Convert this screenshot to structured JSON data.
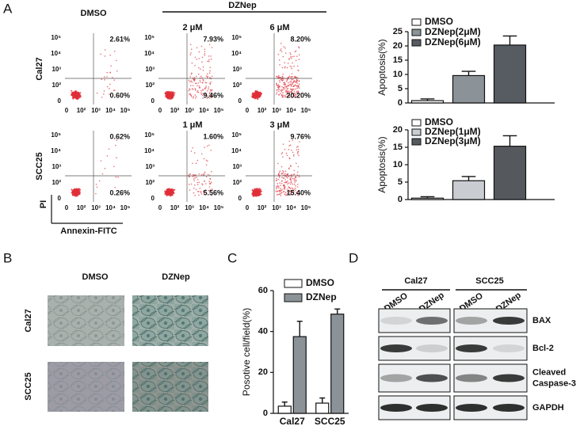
{
  "panel_labels": [
    "A",
    "B",
    "C",
    "D"
  ],
  "flow": {
    "header_dmso": "DMSO",
    "header_dznep": "DZNep",
    "axis_ticks": [
      "0",
      "10²",
      "10³",
      "10⁴",
      "10⁵"
    ],
    "y_label": "PI",
    "x_label": "Annexin-FITC",
    "rows": [
      {
        "label": "Cal27",
        "plots": [
          {
            "upper_right": "2.61%",
            "lower_right": "0.60%"
          },
          {
            "dose": "2 μM",
            "upper_right": "7.93%",
            "lower_right": "9.46%"
          },
          {
            "dose": "6 μM",
            "upper_right": "8.20%",
            "lower_right": "20.20%"
          }
        ]
      },
      {
        "label": "SCC25",
        "plots": [
          {
            "upper_right": "0.62%",
            "lower_right": "0.26%"
          },
          {
            "dose": "1 μM",
            "upper_right": "1.60%",
            "lower_right": "5.56%"
          },
          {
            "dose": "3 μM",
            "upper_right": "9.76%",
            "lower_right": "15.40%"
          }
        ]
      }
    ]
  },
  "chart_data": [
    {
      "type": "bar",
      "y_label": "Apoptosis(%)",
      "ylim": [
        0,
        25
      ],
      "yticks": [
        0,
        5,
        10,
        15,
        20,
        25
      ],
      "legend": "upper left",
      "series": [
        {
          "name": "DMSO",
          "color": "#ffffff",
          "values": [
            0.8
          ],
          "errors": [
            0.6
          ]
        },
        {
          "name": "DZNep(2μM)",
          "color": "#8b9298",
          "values": [
            9.6
          ],
          "errors": [
            1.5
          ]
        },
        {
          "name": "DZNep(6μM)",
          "color": "#565c62",
          "values": [
            20.3
          ],
          "errors": [
            3.2
          ]
        }
      ]
    },
    {
      "type": "bar",
      "y_label": "Apoptosis(%)",
      "ylim": [
        0,
        20
      ],
      "yticks": [
        0,
        5,
        10,
        15,
        20
      ],
      "legend": "upper left",
      "series": [
        {
          "name": "DMSO",
          "color": "#ffffff",
          "values": [
            0.4
          ],
          "errors": [
            0.4
          ]
        },
        {
          "name": "DZNep(1μM)",
          "color": "#c9cdd1",
          "values": [
            5.4
          ],
          "errors": [
            1.2
          ]
        },
        {
          "name": "DZNep(3μM)",
          "color": "#55595e",
          "values": [
            15.3
          ],
          "errors": [
            3.0
          ]
        }
      ]
    },
    {
      "type": "bar",
      "y_label": "Posotive cell/field(%)",
      "ylim": [
        0,
        60
      ],
      "yticks": [
        0,
        20,
        40,
        60
      ],
      "legend": "upper left",
      "categories": [
        "Cal27",
        "SCC25"
      ],
      "series": [
        {
          "name": "DMSO",
          "color": "#ffffff",
          "values": [
            3.5,
            5
          ],
          "errors": [
            2,
            2.5
          ]
        },
        {
          "name": "DZNep",
          "color": "#8b9298",
          "values": [
            37.5,
            48.5
          ],
          "errors": [
            7.5,
            2.5
          ]
        }
      ]
    }
  ],
  "microscopy": {
    "columns": [
      "DMSO",
      "DZNep"
    ],
    "rows": [
      "Cal27",
      "SCC25"
    ]
  },
  "western": {
    "groups": [
      "Cal27",
      "SCC25"
    ],
    "lanes": [
      "DMSO",
      "DZNep"
    ],
    "bands": [
      [
        "BAX"
      ],
      [
        "Bcl-2"
      ],
      [
        "Cleaved",
        "Caspase-3"
      ],
      [
        "GAPDH"
      ]
    ]
  }
}
